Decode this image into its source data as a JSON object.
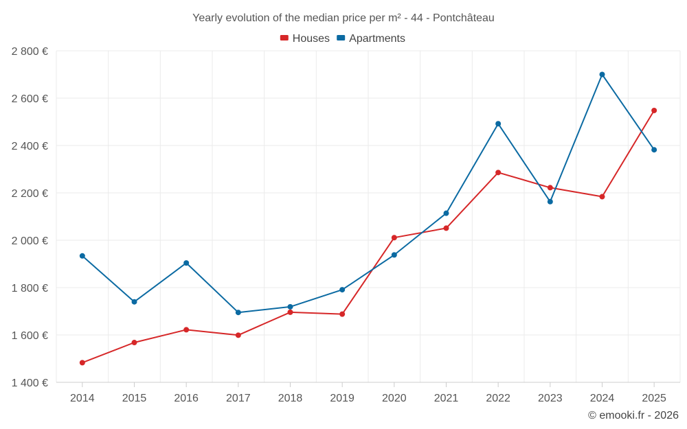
{
  "chart_data": {
    "type": "line",
    "title": "Yearly evolution of the median price per m² - 44 - Pontchâteau",
    "categories": [
      "2014",
      "2015",
      "2016",
      "2017",
      "2018",
      "2019",
      "2020",
      "2021",
      "2022",
      "2023",
      "2024",
      "2025"
    ],
    "series": [
      {
        "name": "Houses",
        "color": "#d62728",
        "values": [
          1483,
          1568,
          1622,
          1599,
          1696,
          1688,
          2011,
          2051,
          2286,
          2222,
          2184,
          2548
        ]
      },
      {
        "name": "Apartments",
        "color": "#0b6aa2",
        "values": [
          1934,
          1740,
          1904,
          1695,
          1719,
          1791,
          1938,
          2114,
          2492,
          2163,
          2700,
          2382
        ]
      }
    ],
    "ylim": [
      1400,
      2800
    ],
    "yticks": [
      1400,
      1600,
      1800,
      2000,
      2200,
      2400,
      2600,
      2800
    ],
    "ytick_labels": [
      "1 400 €",
      "1 600 €",
      "1 800 €",
      "2 000 €",
      "2 200 €",
      "2 400 €",
      "2 600 €",
      "2 800 €"
    ],
    "xlabel": "",
    "ylabel": "",
    "grid": true,
    "legend_position": "top-center"
  },
  "credit": "© emooki.fr - 2026"
}
